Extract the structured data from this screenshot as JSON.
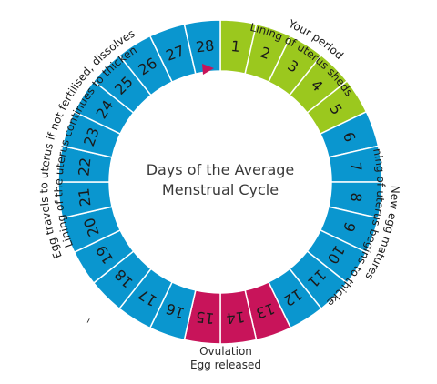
{
  "diagram": {
    "center_lines": [
      "Days of the Average",
      "Menstrual Cycle"
    ],
    "days": [
      {
        "label": "1",
        "phase": "period"
      },
      {
        "label": "2",
        "phase": "period"
      },
      {
        "label": "3",
        "phase": "period"
      },
      {
        "label": "4",
        "phase": "period"
      },
      {
        "label": "5",
        "phase": "period"
      },
      {
        "label": "6",
        "phase": "normal"
      },
      {
        "label": "7",
        "phase": "normal"
      },
      {
        "label": "8",
        "phase": "normal"
      },
      {
        "label": "9",
        "phase": "normal"
      },
      {
        "label": "10",
        "phase": "normal"
      },
      {
        "label": "11",
        "phase": "normal"
      },
      {
        "label": "12",
        "phase": "normal"
      },
      {
        "label": "13",
        "phase": "ovulation"
      },
      {
        "label": "14",
        "phase": "ovulation"
      },
      {
        "label": "15",
        "phase": "ovulation"
      },
      {
        "label": "16",
        "phase": "normal"
      },
      {
        "label": "17",
        "phase": "normal"
      },
      {
        "label": "18",
        "phase": "normal"
      },
      {
        "label": "19",
        "phase": "normal"
      },
      {
        "label": "20",
        "phase": "normal"
      },
      {
        "label": "21",
        "phase": "normal"
      },
      {
        "label": "22",
        "phase": "normal"
      },
      {
        "label": "23",
        "phase": "normal"
      },
      {
        "label": "24",
        "phase": "normal"
      },
      {
        "label": "25",
        "phase": "normal"
      },
      {
        "label": "26",
        "phase": "normal"
      },
      {
        "label": "27",
        "phase": "normal"
      },
      {
        "label": "28",
        "phase": "normal"
      }
    ],
    "colors": {
      "normal": "#0a96cf",
      "period": "#9bc81e",
      "ovulation": "#c8145a",
      "stroke": "#ffffff",
      "marker": "#c8145a"
    },
    "annotations": {
      "period": [
        "Your period",
        "Lining of uterus sheds"
      ],
      "follicular": [
        "New egg matures",
        "Lining of uterus begins to thicken"
      ],
      "luteal": [
        "Egg travels to uterus if not fertilised, dissolves",
        "Lining of the uterus continues to thicken"
      ],
      "ovulation": [
        "Ovulation",
        "Egg released"
      ],
      "luteal_dash": "–"
    }
  }
}
